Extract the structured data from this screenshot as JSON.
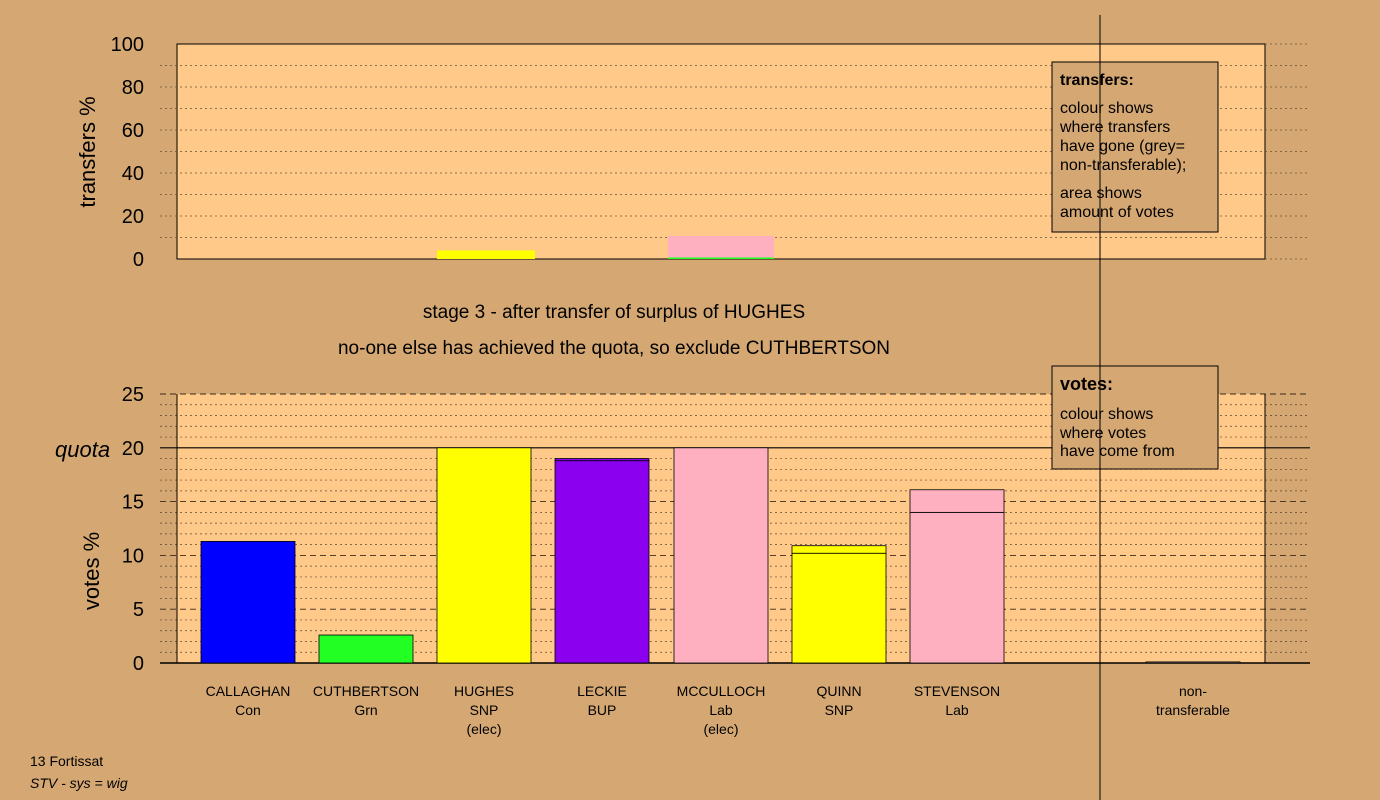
{
  "stage_title": "stage 3 - after transfer of surplus of HUGHES",
  "stage_subtitle": "no-one else has achieved the quota, so exclude CUTHBERTSON",
  "footer": {
    "line1": "13 Fortissat",
    "line2": "STV - sys = wig"
  },
  "legend_transfers": {
    "title": "transfers:",
    "lines": [
      "colour shows",
      "where transfers",
      "have gone (grey=",
      "non-transferable);"
    ],
    "lines2": [
      "area shows",
      "amount of votes"
    ]
  },
  "legend_votes": {
    "title": "votes:",
    "lines": [
      "colour shows",
      "where votes",
      "have come from"
    ]
  },
  "colors": {
    "background": "#d5a873",
    "plot": "#ffc98a",
    "Con": "#0000ff",
    "Grn": "#22ff22",
    "SNP": "#ffff00",
    "BUP": "#8b00ee",
    "Lab": "#ffb0c0",
    "nontransferable": "#999999"
  },
  "chart_data": [
    {
      "type": "bar",
      "name": "transfers",
      "ylabel": "transfers %",
      "ylim": [
        0,
        100
      ],
      "yticks": [
        0,
        20,
        40,
        60,
        80,
        100
      ],
      "categories": [
        "CALLAGHAN",
        "CUTHBERTSON",
        "HUGHES",
        "LECKIE",
        "MCCULLOCH",
        "QUINN",
        "STEVENSON",
        "non-transferable"
      ],
      "bars": [
        {
          "candidate": "HUGHES",
          "segments": [
            {
              "color": "SNP",
              "value": 4
            }
          ]
        },
        {
          "candidate": "MCCULLOCH",
          "segments": [
            {
              "color": "Grn",
              "value": 0.7
            },
            {
              "color": "Lab",
              "value": 10
            }
          ]
        }
      ]
    },
    {
      "type": "bar",
      "name": "votes",
      "ylabel": "votes %",
      "ylim": [
        0,
        25
      ],
      "yticks": [
        0,
        5,
        10,
        15,
        20,
        25
      ],
      "quota": 20,
      "quota_label": "quota",
      "categories": [
        {
          "name": "CALLAGHAN",
          "party": "Con",
          "note": ""
        },
        {
          "name": "CUTHBERTSON",
          "party": "Grn",
          "note": ""
        },
        {
          "name": "HUGHES",
          "party": "SNP",
          "note": "(elec)"
        },
        {
          "name": "LECKIE",
          "party": "BUP",
          "note": ""
        },
        {
          "name": "MCCULLOCH",
          "party": "Lab",
          "note": "(elec)"
        },
        {
          "name": "QUINN",
          "party": "SNP",
          "note": ""
        },
        {
          "name": "STEVENSON",
          "party": "Lab",
          "note": ""
        }
      ],
      "bars": [
        {
          "candidate": "CALLAGHAN",
          "segments": [
            {
              "color": "Con",
              "value": 11.3
            }
          ]
        },
        {
          "candidate": "CUTHBERTSON",
          "segments": [
            {
              "color": "Grn",
              "value": 2.6
            }
          ]
        },
        {
          "candidate": "HUGHES",
          "segments": [
            {
              "color": "SNP",
              "value": 20.0
            }
          ]
        },
        {
          "candidate": "LECKIE",
          "segments": [
            {
              "color": "BUP",
              "value": 18.8
            },
            {
              "color": "BUP",
              "value": 0.2
            }
          ]
        },
        {
          "candidate": "MCCULLOCH",
          "segments": [
            {
              "color": "Lab",
              "value": 20.0
            }
          ]
        },
        {
          "candidate": "QUINN",
          "segments": [
            {
              "color": "SNP",
              "value": 10.2
            },
            {
              "color": "SNP",
              "value": 0.7
            }
          ]
        },
        {
          "candidate": "STEVENSON",
          "segments": [
            {
              "color": "Lab",
              "value": 14.0
            },
            {
              "color": "Lab",
              "value": 2.1
            }
          ]
        }
      ],
      "nontransferable": {
        "label_line1": "non-",
        "label_line2": "transferable",
        "value": 0.1
      }
    }
  ]
}
